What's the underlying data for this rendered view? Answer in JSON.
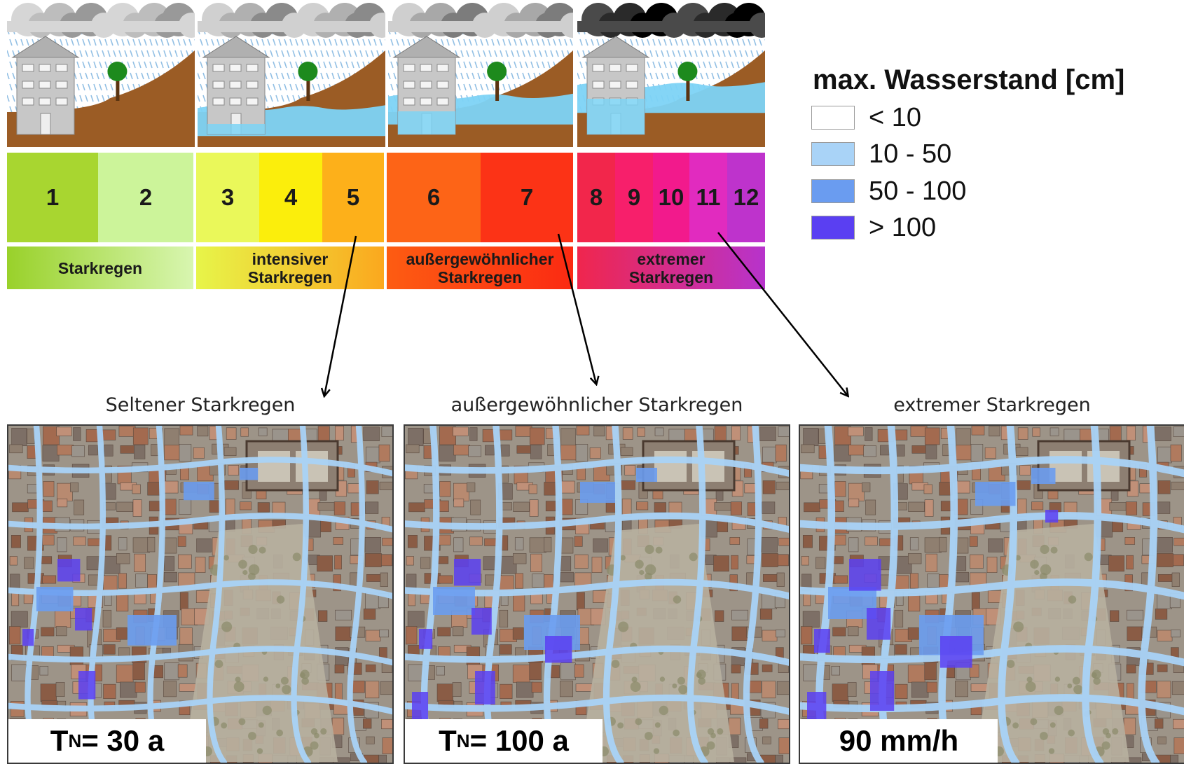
{
  "legend": {
    "title": "max. Wasserstand [cm]",
    "items": [
      {
        "label": "< 10",
        "color": "#ffffff"
      },
      {
        "label": "10 - 50",
        "color": "#a9d3f7"
      },
      {
        "label": "50 - 100",
        "color": "#6a9cf0"
      },
      {
        "label": "> 100",
        "color": "#5a3ff2"
      }
    ]
  },
  "scale": {
    "classes": [
      {
        "num": "1",
        "color": "#a8d630"
      },
      {
        "num": "2",
        "color": "#ccf49a"
      },
      {
        "num": "3",
        "color": "#eaf85a"
      },
      {
        "num": "4",
        "color": "#fbee0c"
      },
      {
        "num": "5",
        "color": "#fdb01a"
      },
      {
        "num": "6",
        "color": "#fd6417"
      },
      {
        "num": "7",
        "color": "#fc3316"
      },
      {
        "num": "8",
        "color": "#f2264b"
      },
      {
        "num": "9",
        "color": "#f71f6b"
      },
      {
        "num": "10",
        "color": "#f21a8c"
      },
      {
        "num": "11",
        "color": "#e12bbf"
      },
      {
        "num": "12",
        "color": "#be33cc"
      }
    ],
    "categories": [
      {
        "line1": "",
        "line2": "Starkregen",
        "colors": [
          "#99d12a",
          "#d8f6b0"
        ]
      },
      {
        "line1": "intensiver",
        "line2": "Starkregen",
        "colors": [
          "#e7f549",
          "#fba81e"
        ]
      },
      {
        "line1": "außergewöhnlicher",
        "line2": "Starkregen",
        "colors": [
          "#fd5c12",
          "#fb2a12"
        ]
      },
      {
        "line1": "extremer",
        "line2": "Starkregen",
        "colors": [
          "#f0264d",
          "#b733cc"
        ]
      }
    ]
  },
  "scenes": {
    "colors": {
      "soil": "#9b5c25",
      "house": "#c7c7c7",
      "water": "#7dd3f5",
      "tree": "#1d8a1d",
      "rain": "#7fb4e0"
    },
    "cloud_colors": [
      [
        "#d6d6d6",
        "#bdbdbd",
        "#999999"
      ],
      [
        "#d0d0d0",
        "#b0b0b0",
        "#8a8a8a"
      ],
      [
        "#cfcfcf",
        "#a8a8a8",
        "#7c7c7c"
      ],
      [
        "#4a4a4a",
        "#2a2a2a",
        "#000000"
      ]
    ],
    "water_levels": [
      0,
      0.25,
      0.55,
      0.85
    ]
  },
  "maps": [
    {
      "title": "Seltener Starkregen",
      "label_main": "T",
      "label_sub": "N",
      "label_rest": " = 30 a",
      "intensity": 0.35
    },
    {
      "title": "außergewöhnlicher Starkregen",
      "label_main": "T",
      "label_sub": "N",
      "label_rest": " = 100 a",
      "intensity": 0.6
    },
    {
      "title": "extremer Starkregen",
      "label_main": "",
      "label_sub": "",
      "label_rest": "90 mm/h",
      "intensity": 0.9
    }
  ]
}
